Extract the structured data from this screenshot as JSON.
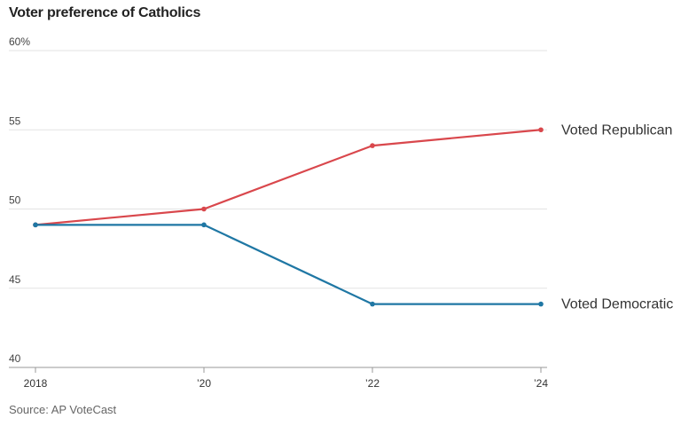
{
  "chart_data": {
    "type": "line",
    "title": "Voter preference of Catholics",
    "source": "Source: AP VoteCast",
    "x": [
      2018,
      2020,
      2022,
      2024
    ],
    "x_tick_labels": [
      "2018",
      "’20",
      "’22",
      "’24"
    ],
    "y_tick_labels": [
      "60%",
      "55",
      "50",
      "45",
      "40"
    ],
    "y_ticks": [
      60,
      55,
      50,
      45,
      40
    ],
    "ylim": [
      40,
      60
    ],
    "grid": true,
    "series": [
      {
        "name": "Voted Republican",
        "values": [
          49,
          50,
          54,
          55
        ],
        "color": "#d9474c"
      },
      {
        "name": "Voted Democratic",
        "values": [
          49,
          49,
          44,
          44
        ],
        "color": "#1f77a4"
      }
    ]
  }
}
